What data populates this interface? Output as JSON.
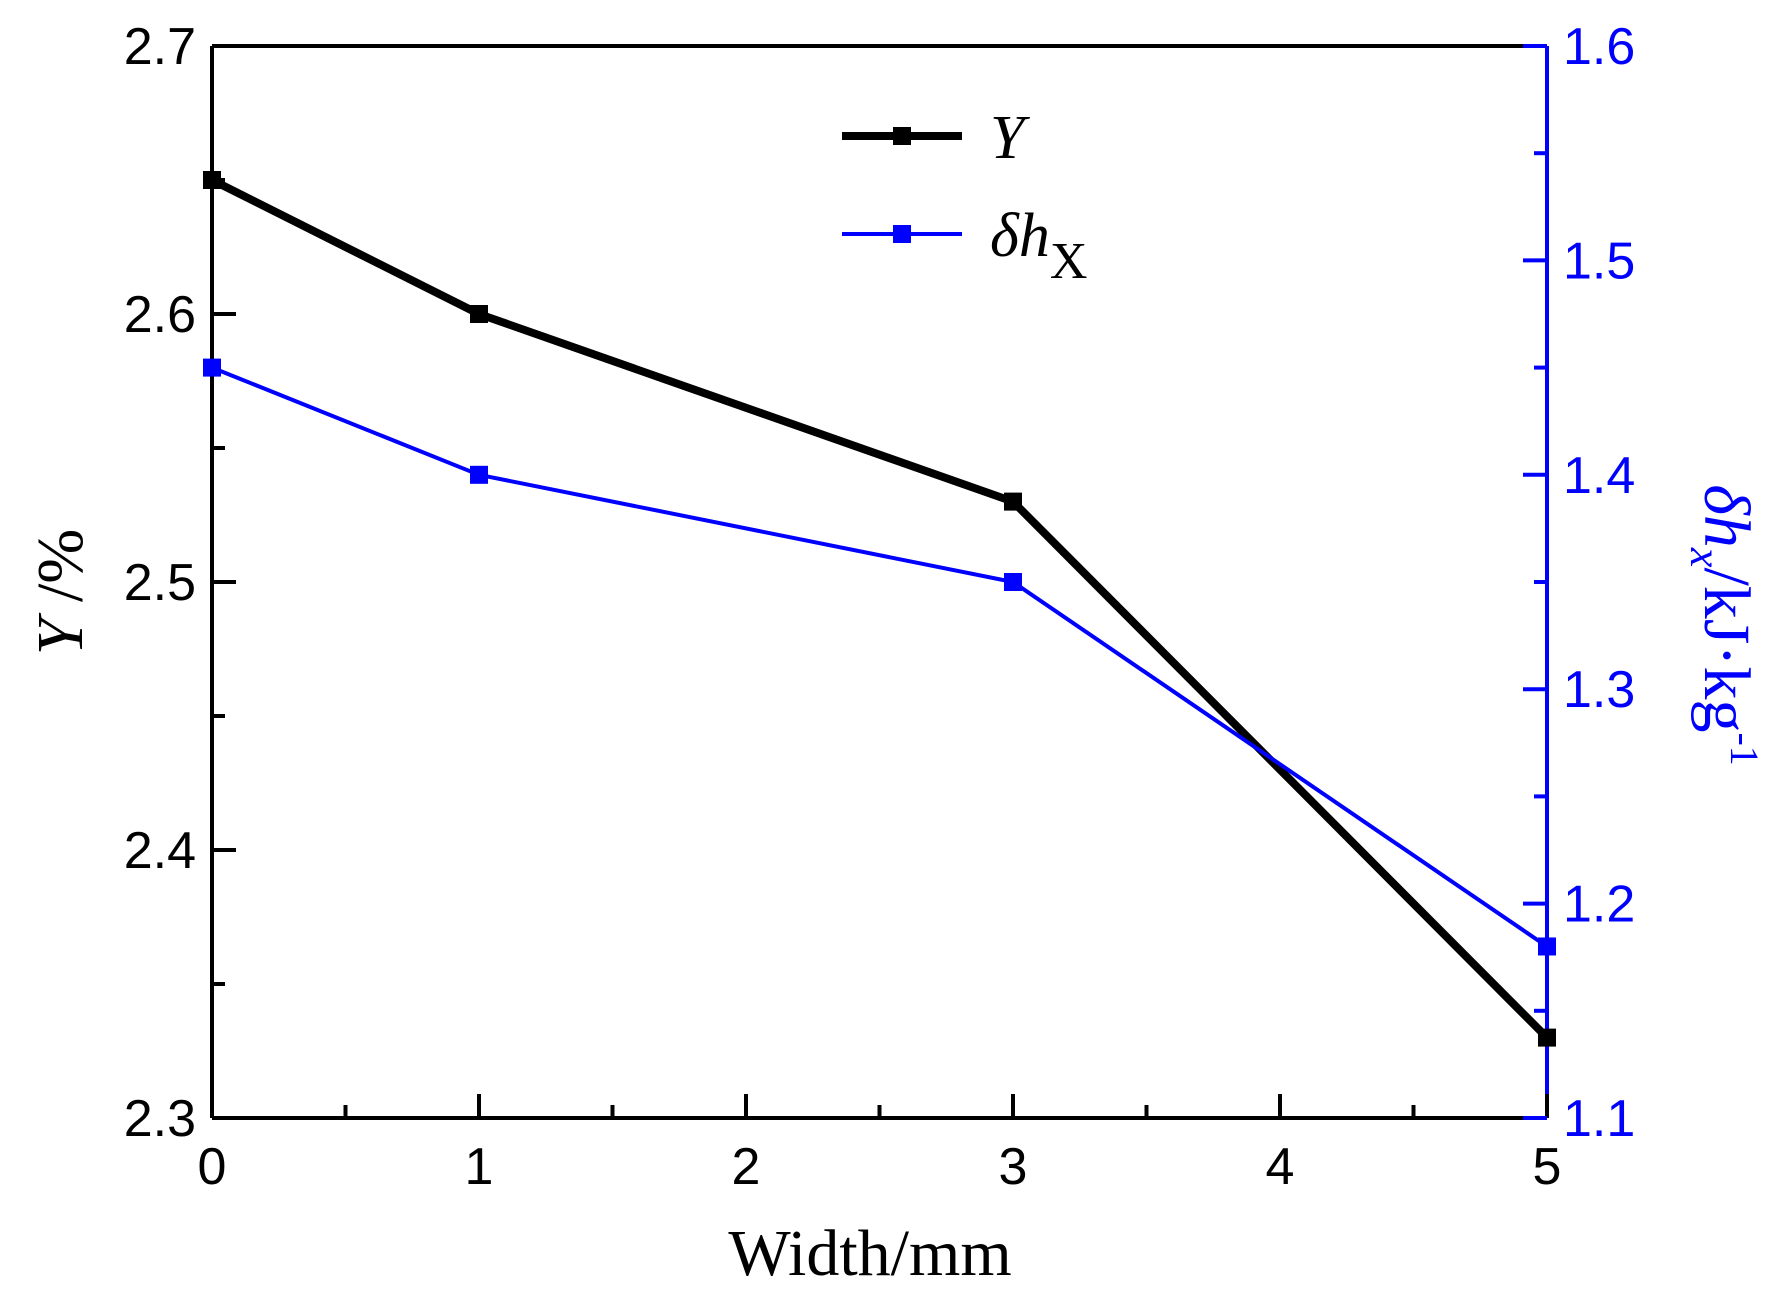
{
  "chart_data": {
    "type": "line",
    "x": [
      0,
      1,
      3,
      5
    ],
    "xlabel": "Width/mm",
    "xlim": [
      0,
      5
    ],
    "xticks": [
      0,
      1,
      2,
      3,
      4,
      5
    ],
    "xtick_labels": [
      "0",
      "1",
      "2",
      "3",
      "4",
      "5"
    ],
    "ylabel_left": "Y /%",
    "ylabel_left_italic_part": "Y",
    "ylabel_left_rest": " /%",
    "ylim_left": [
      2.3,
      2.7
    ],
    "yticks_left": [
      2.3,
      2.4,
      2.5,
      2.6,
      2.7
    ],
    "ytick_labels_left": [
      "2.3",
      "2.4",
      "2.5",
      "2.6",
      "2.7"
    ],
    "ylabel_right": "δh_x/kJ·kg^-1",
    "ylabel_right_parts": {
      "delta": "δ",
      "h": "h",
      "sub": "x",
      "unit": "/kJ·kg",
      "sup": "-1"
    },
    "ylim_right": [
      1.1,
      1.6
    ],
    "yticks_right": [
      1.1,
      1.2,
      1.3,
      1.4,
      1.5,
      1.6
    ],
    "ytick_labels_right": [
      "1.1",
      "1.2",
      "1.3",
      "1.4",
      "1.5",
      "1.6"
    ],
    "grid": false,
    "legend_position": "top-center",
    "series": [
      {
        "name": "Y",
        "axis": "left",
        "color": "#000000",
        "values": [
          2.65,
          2.6,
          2.53,
          2.33
        ],
        "legend": {
          "main": "Y",
          "sub": ""
        }
      },
      {
        "name": "δhX",
        "axis": "right",
        "color": "#0000ff",
        "values": [
          1.45,
          1.4,
          1.35,
          1.18
        ],
        "legend": {
          "main": "δh",
          "sub": "X"
        }
      }
    ]
  }
}
